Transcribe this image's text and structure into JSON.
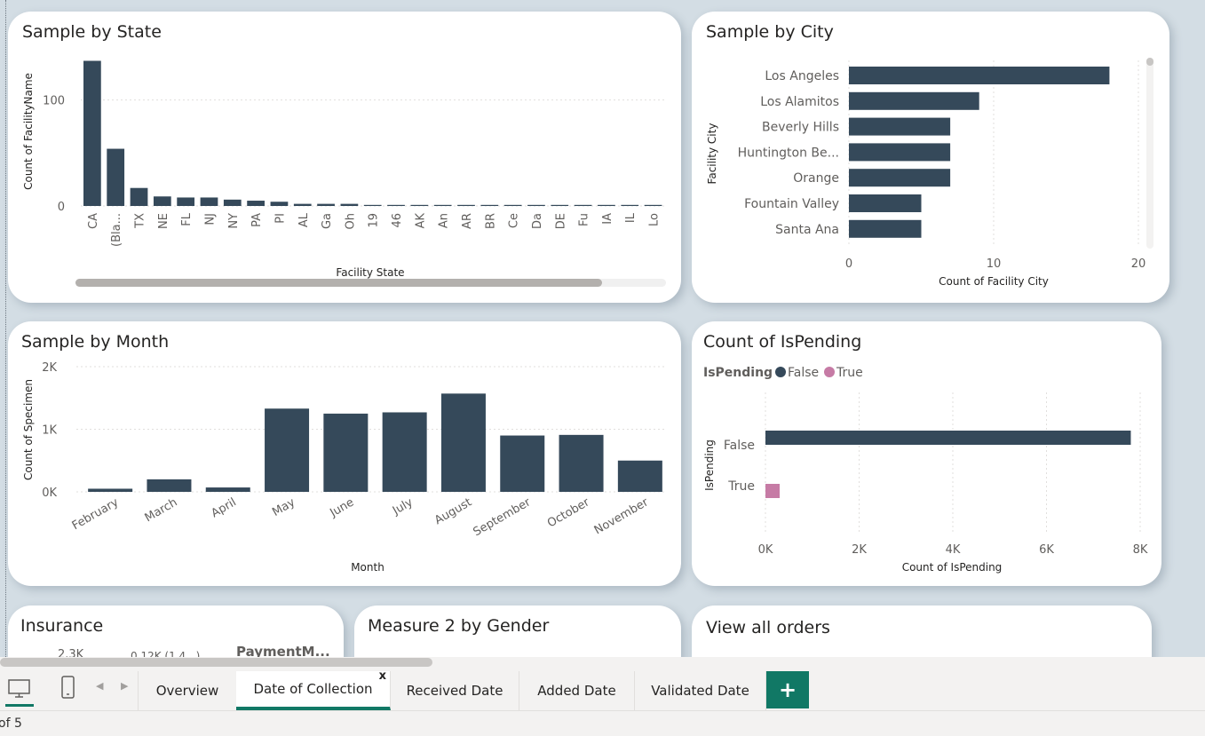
{
  "cards": {
    "state": {
      "title": "Sample by State"
    },
    "city": {
      "title": "Sample by City"
    },
    "month": {
      "title": "Sample by Month"
    },
    "pending": {
      "title": "Count of IsPending"
    },
    "insurance": {
      "title": "Insurance",
      "partial_label_1": "2.3K",
      "partial_label_2": "0.12K (1.4...)",
      "partial_legend": "PaymentM..."
    },
    "gender": {
      "title": "Measure 2 by Gender"
    },
    "orders": {
      "title": "View all orders"
    }
  },
  "chart_data": [
    {
      "id": "state",
      "type": "bar",
      "title": "Sample by State",
      "xlabel": "Facility State",
      "ylabel": "Count of FacilityName",
      "categories": [
        "CA",
        "(Bla...",
        "TX",
        "NE",
        "FL",
        "NJ",
        "NY",
        "PA",
        "PI",
        "AL",
        "Ga",
        "Oh",
        "19",
        "46",
        "AK",
        "An",
        "AR",
        "BR",
        "Ce",
        "Da",
        "DE",
        "Fu",
        "IA",
        "IL",
        "Lo"
      ],
      "values": [
        137,
        54,
        17,
        9,
        8,
        8,
        6,
        5,
        4,
        2,
        2,
        2,
        1,
        1,
        1,
        1,
        1,
        1,
        1,
        1,
        1,
        1,
        1,
        1,
        1
      ],
      "yticks": [
        "0",
        "100"
      ],
      "ylim": [
        0,
        150
      ],
      "grid": true
    },
    {
      "id": "city",
      "type": "bar",
      "orientation": "horizontal",
      "title": "Sample by City",
      "xlabel": "Count of Facility City",
      "ylabel": "Facility City",
      "categories": [
        "Los Angeles",
        "Los Alamitos",
        "Beverly Hills",
        "Huntington Be...",
        "Orange",
        "Fountain Valley",
        "Santa Ana"
      ],
      "values": [
        18,
        9,
        7,
        7,
        7,
        5,
        5
      ],
      "xticks": [
        "0",
        "10",
        "20"
      ],
      "xlim": [
        0,
        20
      ],
      "grid": true
    },
    {
      "id": "month",
      "type": "bar",
      "title": "Sample by Month",
      "xlabel": "Month",
      "ylabel": "Count of Specimen",
      "categories": [
        "February",
        "March",
        "April",
        "May",
        "June",
        "July",
        "August",
        "September",
        "October",
        "November"
      ],
      "values": [
        50,
        200,
        70,
        1330,
        1250,
        1270,
        1570,
        900,
        910,
        500
      ],
      "yticks": [
        "0K",
        "1K",
        "2K"
      ],
      "ylim": [
        0,
        2000
      ],
      "grid": true
    },
    {
      "id": "pending",
      "type": "bar",
      "orientation": "horizontal",
      "title": "Count of IsPending",
      "xlabel": "Count of IsPending",
      "ylabel": "IsPending",
      "legend_title": "IsPending",
      "legend": [
        "False",
        "True"
      ],
      "colors": {
        "False": "#35495a",
        "True": "#c67ba5"
      },
      "categories": [
        "False",
        "True"
      ],
      "values": [
        7800,
        150
      ],
      "xticks": [
        "0K",
        "2K",
        "4K",
        "6K",
        "8K"
      ],
      "xlim": [
        0,
        8000
      ],
      "grid": true
    }
  ],
  "colors": {
    "bar": "#35495a",
    "accent": "#117865",
    "true_series": "#c67ba5"
  },
  "tabs": [
    "Overview",
    "Date of Collection",
    "Received Date",
    "Added Date",
    "Validated Date"
  ],
  "active_tab": "Date of Collection",
  "close_label": "x",
  "add_tab_label": "+",
  "status": {
    "page_text": "of 5"
  },
  "icons": {
    "desktop": "desktop-icon",
    "mobile": "mobile-icon",
    "prev": "chevron-left-icon",
    "next": "chevron-right-icon"
  }
}
